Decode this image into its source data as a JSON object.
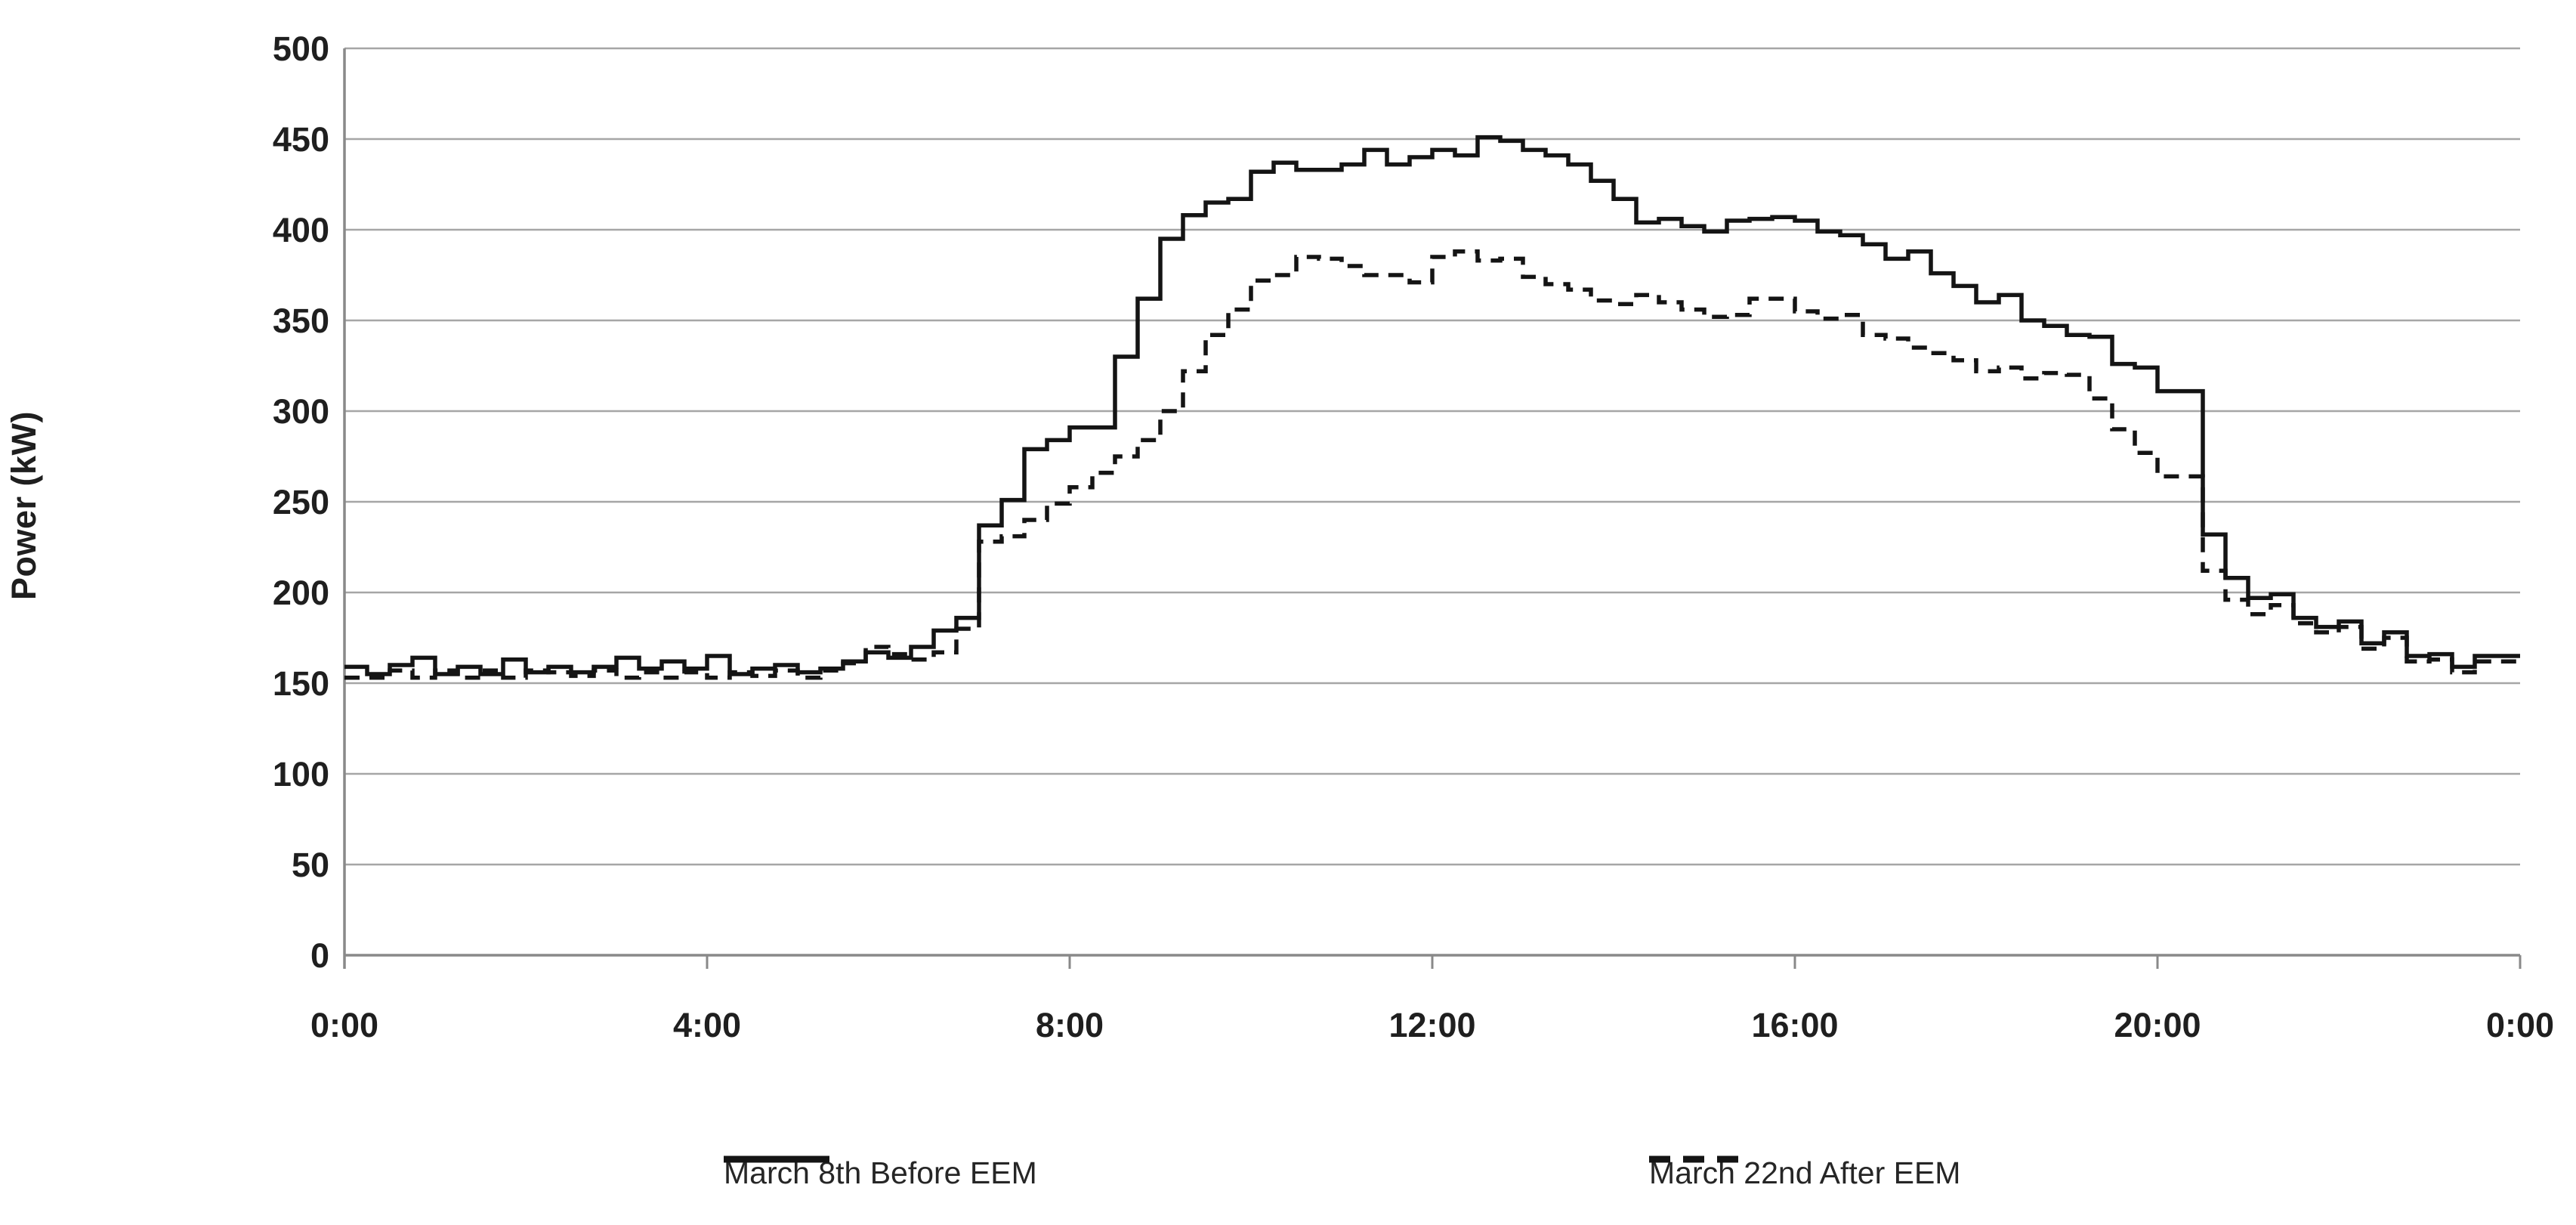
{
  "chart_data": {
    "type": "line",
    "subtype": "step",
    "title": "",
    "xlabel": "",
    "ylabel": "Power (kW)",
    "grid": "horizontal",
    "legend_position": "bottom",
    "ylim": [
      0,
      500
    ],
    "y_ticks": [
      0,
      50,
      100,
      150,
      200,
      250,
      300,
      350,
      400,
      450,
      500
    ],
    "x_range_hours": [
      0,
      24
    ],
    "x_interval_minutes": 15,
    "x_tick_hours": [
      0,
      4,
      8,
      12,
      16,
      20,
      24
    ],
    "x_tick_labels": [
      "0:00",
      "4:00",
      "8:00",
      "12:00",
      "16:00",
      "20:00",
      "0:00"
    ],
    "series": [
      {
        "name": "March 8th Before EEM",
        "style": "solid",
        "color": "#141414",
        "values": [
          159,
          155,
          160,
          164,
          155,
          159,
          155,
          163,
          156,
          159,
          156,
          159,
          164,
          158,
          162,
          158,
          165,
          155,
          158,
          160,
          156,
          158,
          162,
          167,
          164,
          170,
          179,
          186,
          237,
          251,
          279,
          284,
          291,
          291,
          330,
          362,
          395,
          408,
          415,
          417,
          432,
          437,
          433,
          433,
          436,
          444,
          436,
          440,
          444,
          441,
          451,
          449,
          444,
          441,
          436,
          427,
          417,
          404,
          406,
          402,
          399,
          405,
          406,
          407,
          405,
          399,
          397,
          392,
          384,
          388,
          376,
          369,
          360,
          364,
          350,
          347,
          342,
          341,
          326,
          324,
          311,
          311,
          232,
          208,
          197,
          199,
          186,
          181,
          184,
          172,
          178,
          165,
          166,
          159,
          165,
          165
        ]
      },
      {
        "name": "March 22nd After EEM",
        "style": "dashed",
        "color": "#141414",
        "values": [
          153,
          153,
          157,
          153,
          157,
          153,
          157,
          153,
          157,
          156,
          154,
          157,
          153,
          156,
          153,
          156,
          153,
          156,
          154,
          157,
          153,
          157,
          161,
          170,
          166,
          163,
          167,
          180,
          228,
          231,
          240,
          249,
          258,
          266,
          275,
          284,
          300,
          322,
          342,
          356,
          372,
          375,
          385,
          384,
          380,
          375,
          375,
          371,
          385,
          388,
          383,
          384,
          374,
          370,
          367,
          361,
          359,
          364,
          360,
          356,
          352,
          353,
          362,
          362,
          355,
          351,
          353,
          342,
          340,
          335,
          332,
          328,
          322,
          324,
          318,
          321,
          320,
          307,
          290,
          277,
          264,
          264,
          212,
          196,
          188,
          193,
          183,
          178,
          181,
          169,
          175,
          162,
          163,
          156,
          162,
          162
        ]
      }
    ]
  },
  "colors": {
    "background": "#ffffff",
    "gridline": "#a6a6a6",
    "axis": "#898989",
    "tick_text": "#1f1f1f",
    "legend_text": "#262626",
    "series_line": "#141414"
  }
}
